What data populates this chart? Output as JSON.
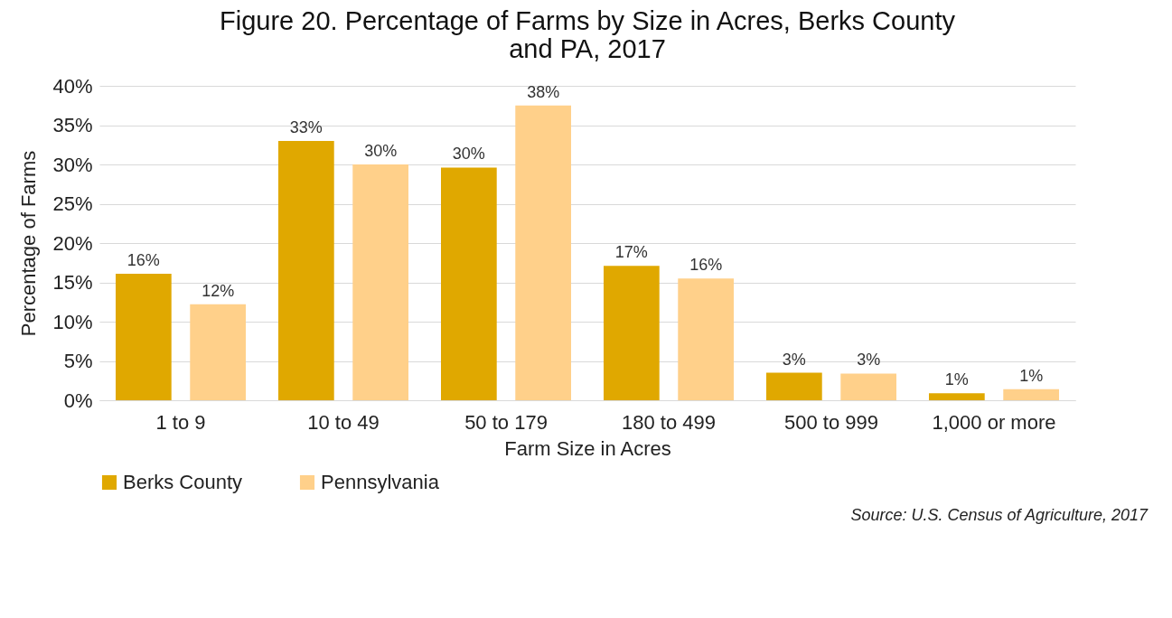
{
  "chart_data": {
    "type": "bar",
    "title": "Figure 20. Percentage of Farms by Size in Acres, Berks County and PA, 2017",
    "xlabel": "Farm Size in Acres",
    "ylabel": "Percentage of Farms",
    "categories": [
      "1 to 9",
      "10 to 49",
      "50 to 179",
      "180 to 499",
      "500 to 999",
      "1,000 or more"
    ],
    "series": [
      {
        "name": "Berks County",
        "color": "#e0a800",
        "values": [
          16.1,
          33.0,
          29.6,
          17.1,
          3.5,
          0.9
        ],
        "value_labels": [
          "16%",
          "33%",
          "30%",
          "17%",
          "3%",
          "1%"
        ]
      },
      {
        "name": "Pennsylvania",
        "color": "#ffd08a",
        "values": [
          12.2,
          30.0,
          37.5,
          15.5,
          3.4,
          1.4
        ],
        "value_labels": [
          "12%",
          "30%",
          "38%",
          "16%",
          "3%",
          "1%"
        ]
      }
    ],
    "ylim": [
      0,
      40
    ],
    "yticks": [
      {
        "value": 0,
        "label": "0%"
      },
      {
        "value": 5,
        "label": "5%"
      },
      {
        "value": 10,
        "label": "10%"
      },
      {
        "value": 15,
        "label": "15%"
      },
      {
        "value": 20,
        "label": "20%"
      },
      {
        "value": 25,
        "label": "25%"
      },
      {
        "value": 30,
        "label": "30%"
      },
      {
        "value": 35,
        "label": "35%"
      },
      {
        "value": 40,
        "label": "40%"
      }
    ],
    "grid": "y",
    "legend": "bottom",
    "annotations": [
      "Source: U.S. Census of Agriculture, 2017"
    ]
  }
}
